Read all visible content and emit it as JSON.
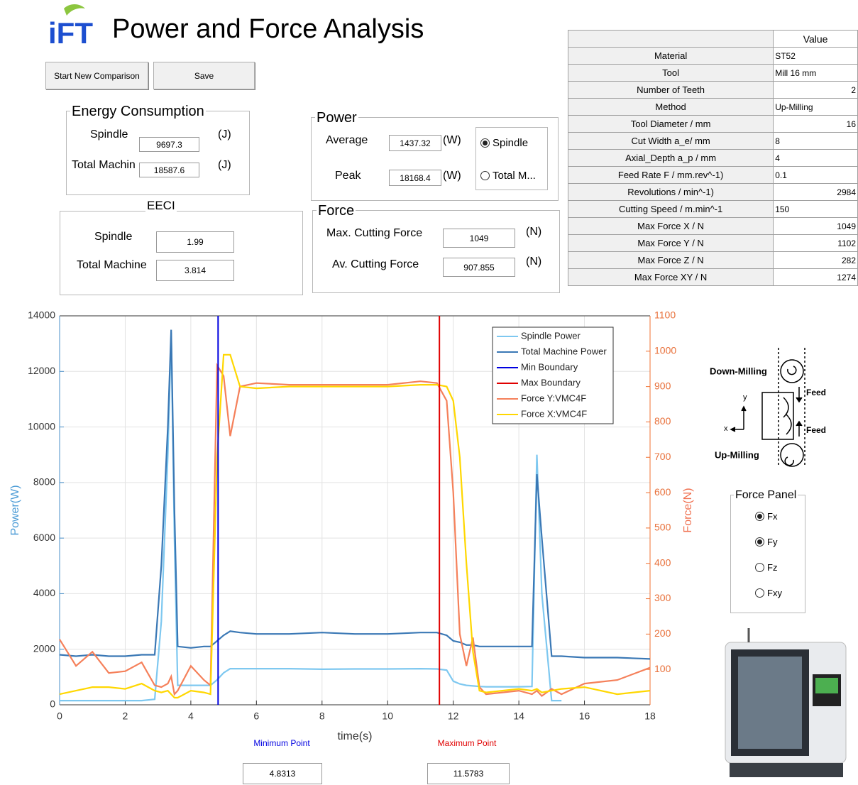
{
  "header": {
    "logo": "iFT",
    "title": "Power and Force Analysis"
  },
  "buttons": [
    "Start New Comparison",
    "Save"
  ],
  "energy_consumption": {
    "title": "Energy Consumption",
    "rows": [
      {
        "label": "Spindle",
        "value": 9697.3,
        "unit": "(J)"
      },
      {
        "label": "Total Machin",
        "value": 18587.6,
        "unit": "(J)"
      }
    ]
  },
  "eeci": {
    "title": "EECI",
    "rows": [
      {
        "label": "Spindle",
        "value": 1.99
      },
      {
        "label": "Total Machine",
        "value": 3.814
      }
    ]
  },
  "power": {
    "title": "Power",
    "rows": [
      {
        "label": "Average",
        "value": 1437.32,
        "unit": "(W)"
      },
      {
        "label": "Peak",
        "value": 18168.4,
        "unit": "(W)"
      }
    ],
    "options": [
      {
        "label": "Spindle",
        "selected": true
      },
      {
        "label": "Total M...",
        "selected": false
      }
    ]
  },
  "force": {
    "title": "Force",
    "rows": [
      {
        "label": "Max. Cutting Force",
        "value": 1049,
        "unit": "(N)"
      },
      {
        "label": "Av. Cutting Force",
        "value": 907.855,
        "unit": "(N)"
      }
    ]
  },
  "table": {
    "header": "Value",
    "rows": [
      [
        "Material",
        "ST52"
      ],
      [
        "Tool",
        "Mill 16 mm"
      ],
      [
        "Number of Teeth",
        2
      ],
      [
        "Method",
        "Up-Milling"
      ],
      [
        "Tool Diameter / mm",
        16
      ],
      [
        "Cut Width a_e/ mm",
        "8"
      ],
      [
        "Axial_Depth a_p / mm",
        "4"
      ],
      [
        "Feed Rate F / mm.rev^-1)",
        "0.1"
      ],
      [
        "Revolutions / min^-1)",
        2984
      ],
      [
        "Cutting Speed / m.min^-1",
        "150"
      ],
      [
        "Max Force X / N",
        1049
      ],
      [
        "Max Force Y / N",
        1102
      ],
      [
        "Max Force Z / N",
        282
      ],
      [
        "Max Force XY / N",
        1274
      ]
    ]
  },
  "chart_data": {
    "type": "line",
    "xlabel": "time(s)",
    "ylabel": "Power(W)",
    "y2label": "Force(N)",
    "xlim": [
      0,
      18
    ],
    "xticks": [
      0,
      2,
      4,
      6,
      8,
      10,
      12,
      14,
      16,
      18
    ],
    "ylim": [
      0,
      14000
    ],
    "yticks": [
      0,
      2000,
      4000,
      6000,
      8000,
      10000,
      12000,
      14000
    ],
    "y2lim": [
      0,
      1100
    ],
    "y2ticks": [
      100,
      200,
      300,
      400,
      500,
      600,
      700,
      800,
      900,
      1000,
      1100
    ],
    "grid": true,
    "x": [
      0,
      0.5,
      1,
      1.5,
      2,
      2.5,
      2.9,
      3.1,
      3.3,
      3.4,
      3.5,
      3.6,
      4,
      4.4,
      4.6,
      4.8,
      5,
      5.2,
      5.5,
      6,
      7,
      8,
      9,
      10,
      11,
      11.5,
      11.8,
      12,
      12.2,
      12.4,
      12.6,
      12.8,
      13,
      13.5,
      14,
      14.4,
      14.55,
      14.7,
      15,
      15.3,
      16,
      17,
      18
    ],
    "series": [
      {
        "name": "Spindle Power",
        "color": "#7ec8f0",
        "values": [
          150,
          150,
          150,
          150,
          150,
          150,
          200,
          3000,
          9000,
          13400,
          6000,
          700,
          700,
          700,
          700,
          900,
          1150,
          1300,
          1300,
          1300,
          1300,
          1280,
          1290,
          1290,
          1300,
          1290,
          1250,
          850,
          750,
          700,
          680,
          660,
          650,
          650,
          650,
          660,
          9000,
          4000,
          150,
          150,
          null,
          null,
          null
        ]
      },
      {
        "name": "Total Machine Power",
        "color": "#3a78b5",
        "values": [
          1800,
          1750,
          1800,
          1750,
          1750,
          1800,
          1800,
          5000,
          10000,
          13500,
          7000,
          2100,
          2050,
          2100,
          2100,
          2300,
          2500,
          2650,
          2600,
          2550,
          2550,
          2600,
          2550,
          2550,
          2600,
          2600,
          2500,
          2300,
          2250,
          2150,
          2150,
          2100,
          2100,
          2100,
          2100,
          2100,
          8300,
          6000,
          1750,
          1750,
          1700,
          1700,
          1650
        ]
      },
      {
        "name": "Force Y:VMC4F",
        "color": "#f5805a",
        "axis": "y2",
        "values": [
          185,
          110,
          150,
          90,
          95,
          120,
          55,
          50,
          60,
          80,
          30,
          40,
          110,
          70,
          55,
          960,
          930,
          760,
          900,
          910,
          905,
          905,
          905,
          905,
          915,
          910,
          860,
          600,
          200,
          110,
          190,
          50,
          30,
          35,
          40,
          30,
          40,
          25,
          45,
          30,
          60,
          70,
          105
        ]
      },
      {
        "name": "Force X:VMC4F",
        "color": "#ffd700",
        "axis": "y2",
        "values": [
          30,
          40,
          50,
          50,
          45,
          60,
          40,
          35,
          40,
          30,
          20,
          20,
          40,
          35,
          30,
          700,
          990,
          990,
          900,
          895,
          900,
          900,
          900,
          900,
          905,
          905,
          900,
          860,
          700,
          400,
          150,
          40,
          35,
          40,
          45,
          40,
          45,
          35,
          40,
          45,
          50,
          30,
          40
        ]
      }
    ],
    "boundaries": [
      {
        "name": "Min Boundary",
        "color": "#0000e0",
        "label": "Minimum Point",
        "value": 4.8313
      },
      {
        "name": "Max Boundary",
        "color": "#e00000",
        "label": "Maximum Point",
        "value": 11.5783
      }
    ],
    "legend": "upper right"
  },
  "diagram": {
    "down": "Down-Milling",
    "up": "Up-Milling",
    "feed": [
      "Feed",
      "Feed"
    ],
    "x": "x",
    "y": "y"
  },
  "force_panel": {
    "title": "Force Panel",
    "options": [
      {
        "label": "Fx",
        "selected": true
      },
      {
        "label": "Fy",
        "selected": true
      },
      {
        "label": "Fz",
        "selected": false
      },
      {
        "label": "Fxy",
        "selected": false
      }
    ]
  }
}
